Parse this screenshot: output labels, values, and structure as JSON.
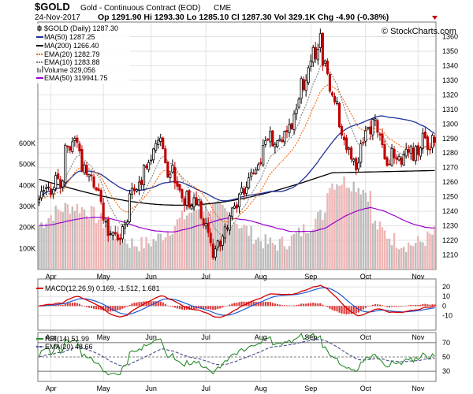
{
  "header": {
    "symbol": "$GOLD",
    "name": "Gold - Continuous Contract (EOD)",
    "exchange": "CME",
    "date": "24-Nov-2017",
    "quote": "Op 1291.90  Hi 1293.30  Lo 1285.10  Cl 1287.30  Vol 329.1K  Chg -4.90 (-0.38%)",
    "down_arrow_color": "#c00000"
  },
  "watermark": "© StockCharts.com",
  "legend": {
    "price": "$GOLD (Daily) 1287.30",
    "ma50": "MA(50) 1287.25",
    "ma200": "MA(200) 1266.40",
    "ema20": "EMA(20) 1282.79",
    "ema10": "EMA(10) 1283.88",
    "volume": "Volume 329,056",
    "vol_ema50": "EMA(50) 319941.75"
  },
  "macd_label": "MACD(12,26,9) 0.169, -1.512, 1.681",
  "rsi_label": "RSI(14) 51.99",
  "rsi_ema_label": "EMA(20) 48.66",
  "chart_data": {
    "type": "candlestick",
    "colors": {
      "up": "#000000",
      "down": "#c00000",
      "ma50": "#1f2f9b",
      "ma200": "#000000",
      "ema20": "#ff6600",
      "ema10": "#808080",
      "vol_ema": "#9900cc",
      "vol_up": "#bdbdbd",
      "vol_down": "#f0b4b4",
      "macd": "#d40000",
      "signal": "#1e5ad7",
      "hist": "#d40000",
      "rsi": "#2b8b2b",
      "rsi_ema": "#4a4a8a",
      "grid": "#e2e2e2"
    },
    "grid": true,
    "x_labels": [
      "Apr",
      "May",
      "Jun",
      "Jul",
      "Aug",
      "Sep",
      "Oct",
      "Nov"
    ],
    "x_label_index": [
      5,
      27,
      47,
      70,
      93,
      114,
      137,
      159
    ],
    "price_axis": {
      "min": 1200,
      "max": 1370,
      "ticks": [
        1210,
        1220,
        1230,
        1240,
        1250,
        1260,
        1270,
        1280,
        1290,
        1300,
        1310,
        1320,
        1330,
        1340,
        1350,
        1360
      ]
    },
    "volume_axis": {
      "max": 900000,
      "ticks": [
        100000,
        200000,
        300000,
        400000,
        500000,
        600000
      ],
      "tick_labels": [
        "100K",
        "200K",
        "300K",
        "400K",
        "500K",
        "600K"
      ]
    },
    "macd_axis": {
      "min": -22,
      "max": 25,
      "ticks": [
        20,
        10,
        0,
        -10
      ]
    },
    "rsi_axis": {
      "min": 18,
      "max": 82,
      "ticks": [
        70,
        50,
        30
      ],
      "tick_labels": [
        "70",
        "50",
        "30"
      ],
      "lines": [
        70,
        50,
        30
      ]
    },
    "close": [
      1247.9,
      1253.6,
      1254.4,
      1256.2,
      1256.7,
      1251.5,
      1255.0,
      1264.6,
      1262.4,
      1256.3,
      1260.7,
      1285.4,
      1284.4,
      1281.9,
      1287.8,
      1290.1,
      1287.3,
      1281.4,
      1267.5,
      1271.9,
      1265.3,
      1265.1,
      1264.9,
      1256.5,
      1254.7,
      1254.3,
      1246.6,
      1233.9,
      1233.1,
      1223.3,
      1224.5,
      1225.3,
      1224.4,
      1220.4,
      1220.5,
      1229.5,
      1230.8,
      1232.6,
      1252.0,
      1255.8,
      1254.2,
      1255.0,
      1260.1,
      1258.3,
      1271.6,
      1270.0,
      1273.5,
      1275.2,
      1282.9,
      1286.6,
      1288.8,
      1290.4,
      1283.0,
      1273.3,
      1263.6,
      1265.5,
      1271.6,
      1259.5,
      1257.2,
      1254.6,
      1249.1,
      1243.9,
      1253.6,
      1242.8,
      1243.8,
      1249.3,
      1244.8,
      1247.8,
      1235.3,
      1230.5,
      1231.7,
      1225.4,
      1218.3,
      1208.2,
      1214.2,
      1219.6,
      1216.0,
      1222.8,
      1229.3,
      1228.6,
      1236.9,
      1242.3,
      1243.6,
      1242.2,
      1251.9,
      1256.0,
      1251.7,
      1256.5,
      1263.0,
      1266.6,
      1266.1,
      1268.3,
      1272.1,
      1272.7,
      1285.2,
      1288.5,
      1289.2,
      1294.8,
      1285.0,
      1286.0,
      1288.5,
      1289.6,
      1287.8,
      1294.9,
      1294.6,
      1299.6,
      1296.7,
      1306.8,
      1310.3,
      1317.0,
      1331.1,
      1323.6,
      1329.9,
      1338.6,
      1343.3,
      1352.5,
      1344.7,
      1351.4,
      1362.0,
      1340.2,
      1343.4,
      1334.5,
      1322.5,
      1319.7,
      1315.1,
      1315.4,
      1298.0,
      1292.3,
      1289.1,
      1282.3,
      1283.5,
      1275.8,
      1275.8,
      1268.5,
      1273.2,
      1286.3,
      1287.0,
      1295.3,
      1297.6,
      1293.2,
      1303.2,
      1303.6,
      1294.2,
      1292.3,
      1285.7,
      1276.1,
      1271.5,
      1272.4,
      1283.1,
      1276.7,
      1275.7,
      1277.8,
      1272.3,
      1278.8,
      1282.7,
      1280.6,
      1284.7,
      1275.0,
      1284.7,
      1278.9,
      1283.5,
      1293.6,
      1290.4,
      1282.4,
      1282.2,
      1292.2,
      1287.3
    ]
  }
}
